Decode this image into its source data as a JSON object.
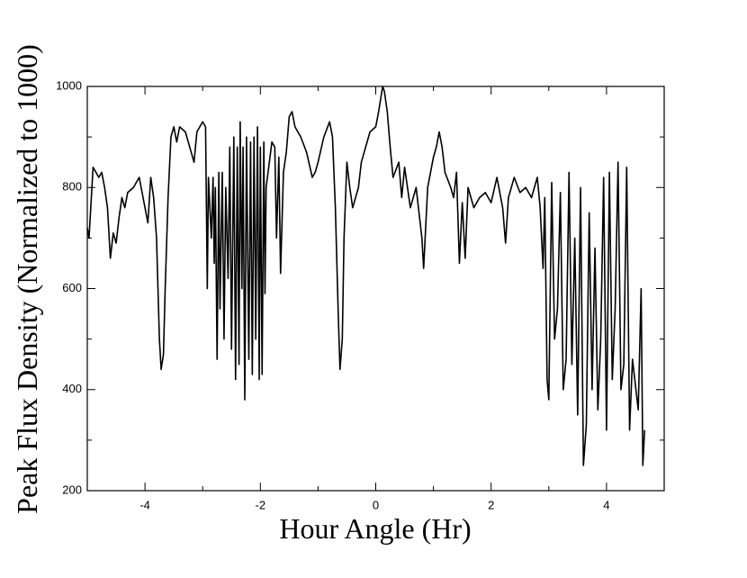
{
  "chart_data": {
    "type": "line",
    "x_label": "Hour Angle (Hr)",
    "y_label": "Peak Flux Density (Normalized to 1000)",
    "xlim": [
      -5,
      5
    ],
    "ylim": [
      200,
      1000
    ],
    "xticks": [
      -4,
      -2,
      0,
      2,
      4
    ],
    "yticks": [
      200,
      400,
      600,
      800,
      1000
    ],
    "xminorticks": [
      -5,
      -3,
      -1,
      1,
      3,
      5
    ],
    "yminorticks": [
      300,
      500,
      700,
      900
    ],
    "x": [
      -5.0,
      -4.97,
      -4.9,
      -4.8,
      -4.75,
      -4.7,
      -4.65,
      -4.6,
      -4.55,
      -4.5,
      -4.45,
      -4.4,
      -4.35,
      -4.3,
      -4.2,
      -4.1,
      -4.05,
      -4.0,
      -3.95,
      -3.9,
      -3.85,
      -3.8,
      -3.75,
      -3.72,
      -3.68,
      -3.65,
      -3.6,
      -3.55,
      -3.5,
      -3.45,
      -3.4,
      -3.3,
      -3.2,
      -3.15,
      -3.1,
      -3.0,
      -2.95,
      -2.92,
      -2.9,
      -2.85,
      -2.82,
      -2.8,
      -2.78,
      -2.75,
      -2.72,
      -2.7,
      -2.66,
      -2.63,
      -2.6,
      -2.56,
      -2.53,
      -2.5,
      -2.46,
      -2.43,
      -2.4,
      -2.37,
      -2.35,
      -2.32,
      -2.3,
      -2.27,
      -2.24,
      -2.2,
      -2.17,
      -2.14,
      -2.11,
      -2.08,
      -2.05,
      -2.02,
      -2.0,
      -1.97,
      -1.94,
      -1.92,
      -1.9,
      -1.8,
      -1.75,
      -1.72,
      -1.68,
      -1.65,
      -1.6,
      -1.55,
      -1.5,
      -1.45,
      -1.4,
      -1.3,
      -1.2,
      -1.1,
      -1.05,
      -1.0,
      -0.9,
      -0.8,
      -0.75,
      -0.7,
      -0.65,
      -0.62,
      -0.58,
      -0.55,
      -0.5,
      -0.45,
      -0.4,
      -0.3,
      -0.25,
      -0.2,
      -0.1,
      0.0,
      0.05,
      0.12,
      0.15,
      0.2,
      0.25,
      0.3,
      0.4,
      0.45,
      0.5,
      0.6,
      0.7,
      0.8,
      0.83,
      0.9,
      1.0,
      1.05,
      1.1,
      1.15,
      1.2,
      1.3,
      1.35,
      1.4,
      1.45,
      1.5,
      1.55,
      1.6,
      1.7,
      1.8,
      1.9,
      2.0,
      2.1,
      2.2,
      2.25,
      2.3,
      2.4,
      2.5,
      2.6,
      2.7,
      2.8,
      2.85,
      2.9,
      2.93,
      2.97,
      3.0,
      3.05,
      3.1,
      3.15,
      3.2,
      3.25,
      3.3,
      3.35,
      3.4,
      3.45,
      3.5,
      3.55,
      3.6,
      3.65,
      3.7,
      3.75,
      3.8,
      3.85,
      3.9,
      3.95,
      4.0,
      4.05,
      4.1,
      4.15,
      4.2,
      4.25,
      4.3,
      4.35,
      4.4,
      4.45,
      4.55,
      4.6,
      4.63,
      4.66
    ],
    "series": [
      {
        "color": "#000000",
        "values": [
          720,
          700,
          840,
          820,
          830,
          800,
          760,
          660,
          710,
          690,
          740,
          780,
          760,
          790,
          800,
          820,
          790,
          760,
          730,
          820,
          780,
          700,
          500,
          440,
          470,
          600,
          780,
          900,
          920,
          890,
          920,
          910,
          870,
          850,
          910,
          930,
          920,
          600,
          820,
          700,
          820,
          650,
          800,
          460,
          830,
          560,
          830,
          500,
          800,
          620,
          880,
          480,
          900,
          420,
          880,
          450,
          930,
          600,
          880,
          380,
          900,
          460,
          890,
          430,
          900,
          500,
          920,
          420,
          880,
          430,
          890,
          590,
          800,
          890,
          880,
          700,
          860,
          630,
          830,
          870,
          940,
          950,
          920,
          900,
          870,
          820,
          830,
          850,
          900,
          930,
          900,
          760,
          550,
          440,
          500,
          700,
          850,
          800,
          760,
          800,
          850,
          870,
          910,
          920,
          950,
          1000,
          990,
          950,
          880,
          820,
          850,
          780,
          840,
          760,
          800,
          700,
          640,
          800,
          860,
          880,
          910,
          880,
          830,
          800,
          780,
          830,
          650,
          770,
          660,
          800,
          760,
          780,
          790,
          770,
          820,
          760,
          690,
          780,
          820,
          790,
          800,
          780,
          820,
          760,
          640,
          780,
          420,
          380,
          810,
          500,
          560,
          790,
          400,
          460,
          830,
          450,
          700,
          350,
          800,
          250,
          330,
          750,
          400,
          680,
          360,
          500,
          820,
          320,
          830,
          420,
          560,
          850,
          400,
          450,
          840,
          320,
          460,
          360,
          600,
          250,
          320
        ]
      }
    ]
  }
}
